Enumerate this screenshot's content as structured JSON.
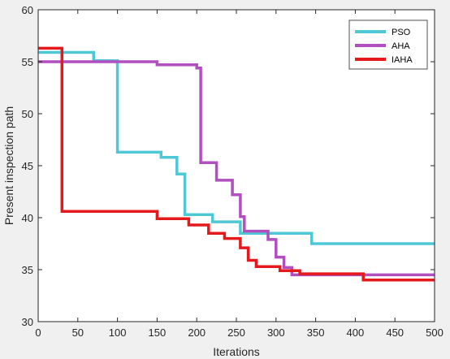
{
  "chart_data": {
    "type": "line",
    "title": "",
    "xlabel": "Iterations",
    "ylabel": "Present inspection path",
    "xlim": [
      0,
      500
    ],
    "ylim": [
      30,
      60
    ],
    "xticks": [
      "0",
      "50",
      "100",
      "150",
      "200",
      "250",
      "300",
      "350",
      "400",
      "450",
      "500"
    ],
    "yticks": [
      "30",
      "35",
      "40",
      "45",
      "50",
      "55",
      "60"
    ],
    "grid": false,
    "legend_position": "top-right",
    "series": [
      {
        "name": "PSO",
        "color": "#4fc8d6",
        "points": [
          [
            0,
            55.9
          ],
          [
            70,
            55.9
          ],
          [
            70,
            55.1
          ],
          [
            100,
            55.1
          ],
          [
            100,
            46.3
          ],
          [
            155,
            46.3
          ],
          [
            155,
            45.8
          ],
          [
            175,
            45.8
          ],
          [
            175,
            44.2
          ],
          [
            185,
            44.2
          ],
          [
            185,
            40.3
          ],
          [
            220,
            40.3
          ],
          [
            220,
            39.6
          ],
          [
            255,
            39.6
          ],
          [
            255,
            38.5
          ],
          [
            345,
            38.5
          ],
          [
            345,
            37.5
          ],
          [
            500,
            37.5
          ]
        ]
      },
      {
        "name": "AHA",
        "color": "#b24fc0",
        "points": [
          [
            0,
            55.0
          ],
          [
            150,
            55.0
          ],
          [
            150,
            54.7
          ],
          [
            200,
            54.7
          ],
          [
            200,
            54.4
          ],
          [
            205,
            54.4
          ],
          [
            205,
            45.3
          ],
          [
            225,
            45.3
          ],
          [
            225,
            43.6
          ],
          [
            245,
            43.6
          ],
          [
            245,
            42.2
          ],
          [
            255,
            42.2
          ],
          [
            255,
            40.1
          ],
          [
            260,
            40.1
          ],
          [
            260,
            38.7
          ],
          [
            290,
            38.7
          ],
          [
            290,
            37.9
          ],
          [
            300,
            37.9
          ],
          [
            300,
            36.2
          ],
          [
            310,
            36.2
          ],
          [
            310,
            35.2
          ],
          [
            320,
            35.2
          ],
          [
            320,
            34.5
          ],
          [
            500,
            34.5
          ]
        ]
      },
      {
        "name": "IAHA",
        "color": "#e5191c",
        "points": [
          [
            0,
            56.3
          ],
          [
            30,
            56.3
          ],
          [
            30,
            40.6
          ],
          [
            150,
            40.6
          ],
          [
            150,
            39.9
          ],
          [
            190,
            39.9
          ],
          [
            190,
            39.3
          ],
          [
            215,
            39.3
          ],
          [
            215,
            38.5
          ],
          [
            235,
            38.5
          ],
          [
            235,
            38.0
          ],
          [
            255,
            38.0
          ],
          [
            255,
            37.1
          ],
          [
            265,
            37.1
          ],
          [
            265,
            35.9
          ],
          [
            275,
            35.9
          ],
          [
            275,
            35.3
          ],
          [
            305,
            35.3
          ],
          [
            305,
            34.9
          ],
          [
            330,
            34.9
          ],
          [
            330,
            34.6
          ],
          [
            410,
            34.6
          ],
          [
            410,
            34.0
          ],
          [
            500,
            34.0
          ]
        ]
      }
    ]
  }
}
